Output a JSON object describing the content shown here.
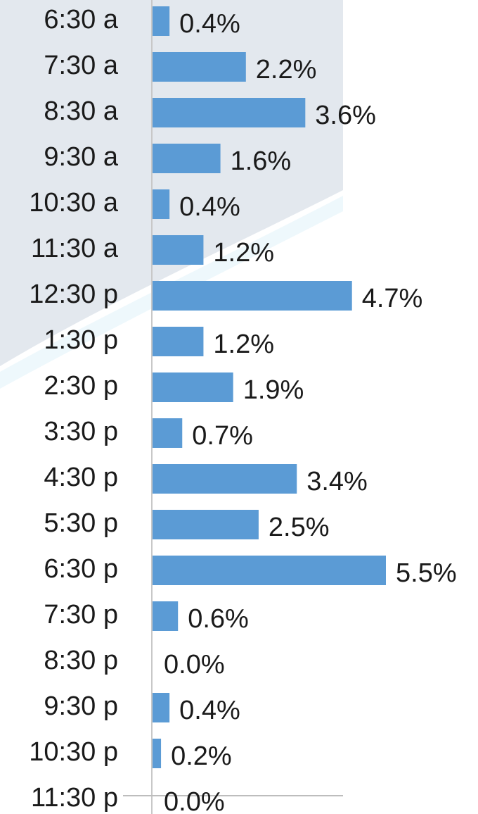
{
  "chart_data": {
    "type": "bar",
    "orientation": "horizontal",
    "color": "#5b9bd5",
    "categories": [
      "6:30 a",
      "7:30 a",
      "8:30 a",
      "9:30 a",
      "10:30 a",
      "11:30 a",
      "12:30 p",
      "1:30 p",
      "2:30 p",
      "3:30 p",
      "4:30 p",
      "5:30 p",
      "6:30 p",
      "7:30 p",
      "8:30 p",
      "9:30 p",
      "10:30 p",
      "11:30 p"
    ],
    "values": [
      0.4,
      2.2,
      3.6,
      1.6,
      0.4,
      1.2,
      4.7,
      1.2,
      1.9,
      0.7,
      3.4,
      2.5,
      5.5,
      0.6,
      0.0,
      0.4,
      0.2,
      0.0
    ],
    "value_labels": [
      "0.4%",
      "2.2%",
      "3.6%",
      "1.6%",
      "0.4%",
      "1.2%",
      "4.7%",
      "1.2%",
      "1.9%",
      "0.7%",
      "3.4%",
      "2.5%",
      "5.5%",
      "0.6%",
      "0.0%",
      "0.4%",
      "0.2%",
      "0.0%"
    ]
  }
}
